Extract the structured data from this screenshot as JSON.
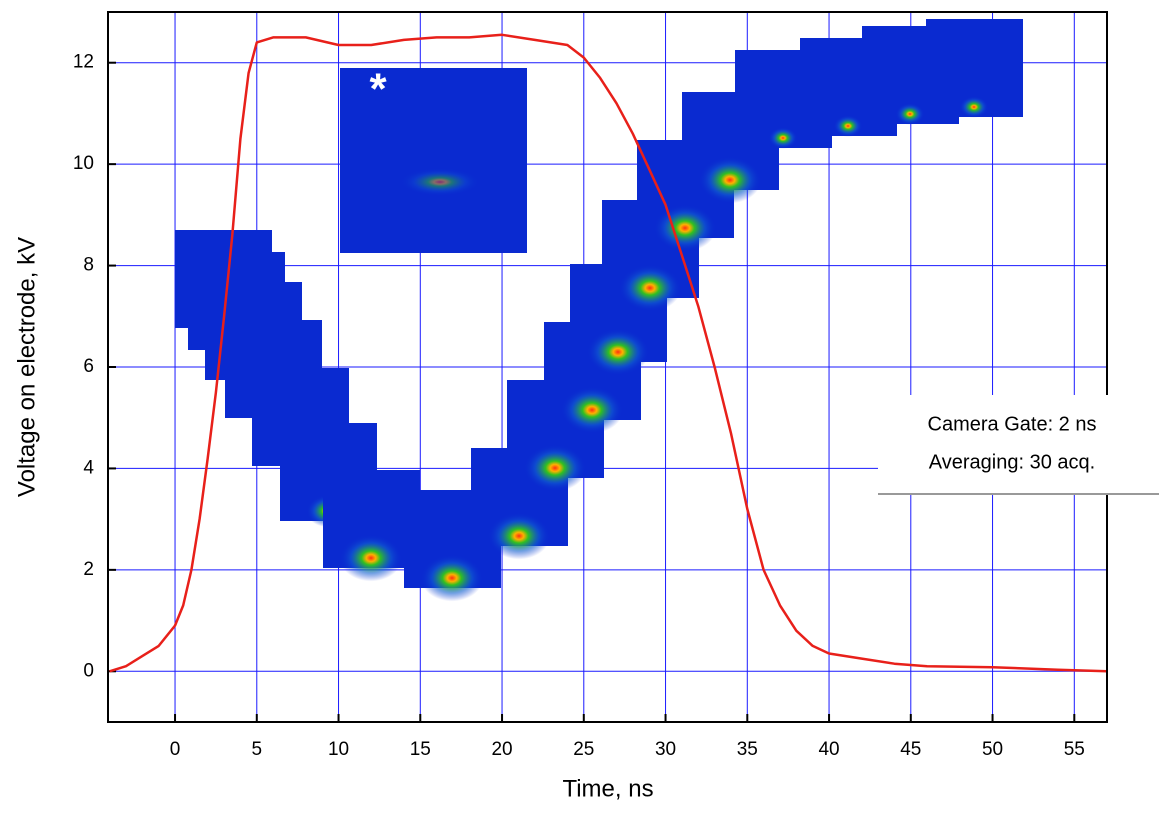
{
  "chart_data": {
    "type": "line",
    "x_label": "Time, ns",
    "y_label": "Voltage on electrode, kV",
    "annotations": [
      "Camera Gate: 2 ns",
      "Averaging: 30 acq."
    ],
    "inset_marker": "*",
    "xlim": [
      -4.1,
      57
    ],
    "xticks": [
      0,
      5,
      10,
      15,
      20,
      25,
      30,
      35,
      40,
      45,
      50,
      55
    ],
    "ylim": [
      -1,
      13
    ],
    "yticks": [
      0,
      2,
      4,
      6,
      8,
      10,
      12
    ],
    "grid": true,
    "grid_color": "#1a1aff",
    "series": [
      {
        "name": "Voltage",
        "color": "#e8201a",
        "x": [
          -4,
          -3,
          -2,
          -1,
          0,
          0.5,
          1,
          1.5,
          2,
          2.5,
          3,
          3.5,
          4,
          4.5,
          5,
          6,
          8,
          10,
          12,
          14,
          16,
          18,
          20,
          22,
          24,
          25,
          26,
          27,
          28,
          29,
          30,
          31,
          32,
          33,
          34,
          35,
          36,
          37,
          38,
          39,
          40,
          42,
          44,
          46,
          50,
          54,
          57
        ],
        "values": [
          0,
          0.1,
          0.3,
          0.5,
          0.9,
          1.3,
          2,
          3,
          4.2,
          5.5,
          7,
          8.6,
          10.5,
          11.8,
          12.4,
          12.5,
          12.5,
          12.35,
          12.35,
          12.45,
          12.5,
          12.5,
          12.55,
          12.45,
          12.35,
          12.1,
          11.7,
          11.2,
          10.6,
          9.9,
          9.2,
          8.2,
          7.2,
          6,
          4.7,
          3.2,
          2,
          1.3,
          0.8,
          0.5,
          0.35,
          0.25,
          0.15,
          0.1,
          0.08,
          0.03,
          0
        ]
      }
    ]
  }
}
